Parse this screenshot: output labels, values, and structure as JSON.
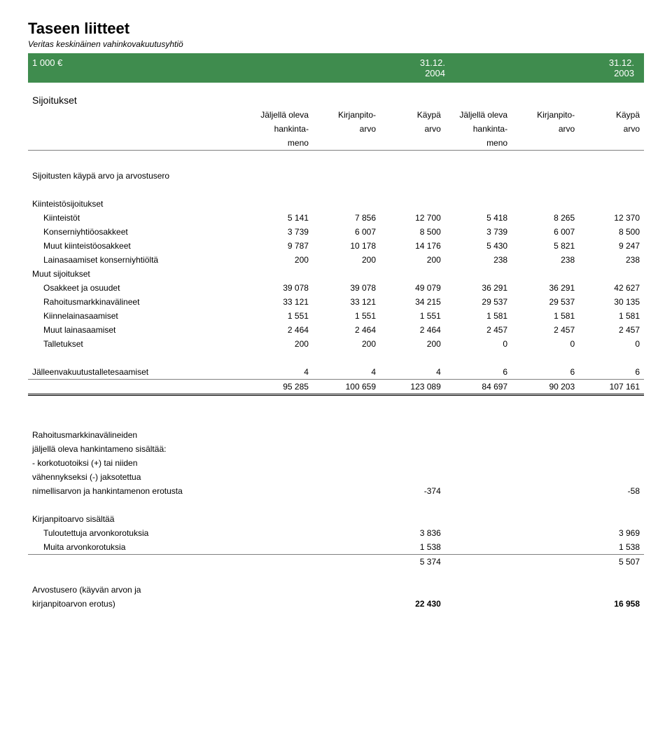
{
  "colors": {
    "green_bar_bg": "#3f8c4e",
    "green_bar_text": "#ffffff",
    "rule": "#808080",
    "text": "#000000",
    "background": "#ffffff"
  },
  "typography": {
    "title_fontsize": 22,
    "subtitle_fontsize": 12,
    "body_fontsize": 12,
    "section_heading_fontsize": 14
  },
  "header": {
    "title": "Taseen liitteet",
    "subtitle": "Veritas keskinäinen vahinkovakuutusyhtiö"
  },
  "green_bar": {
    "currency_label": "1 000 €",
    "date1": "31.12.",
    "year1": "2004",
    "date2": "31.12.",
    "year2": "2003"
  },
  "section_sijoitukset": "Sijoitukset",
  "col_headers": {
    "jaljella": "Jäljellä oleva",
    "hankinta": "hankinta-",
    "meno": "meno",
    "kirjanpito": "Kirjanpito-",
    "arvo": "arvo",
    "kaypa": "Käypä"
  },
  "labels": {
    "sijoitusten": "Sijoitusten käypä arvo ja arvostusero",
    "kiinteistosijoitukset": "Kiinteistösijoitukset",
    "kiinteistot": "Kiinteistöt",
    "konserniyhtio": "Konserniyhtiöosakkeet",
    "muutkiinteisto": "Muut kiinteistöosakkeet",
    "lainasaamiset_konserni": "Lainasaamiset konserniyhtiöltä",
    "muut_sijoitukset": "Muut sijoitukset",
    "osakkeet": "Osakkeet ja osuudet",
    "rahoitusmarkkina": "Rahoitusmarkkinavälineet",
    "kiinnelaina": "Kiinnelainasaamiset",
    "muut_laina": "Muut lainasaamiset",
    "talletukset": "Talletukset",
    "jalleenvakuutus": "Jälleenvakuutustalletesaamiset",
    "rahoitus_heading": "Rahoitusmarkkinavälineiden",
    "jaljella_hankinta": "jäljellä oleva hankintameno sisältää:",
    "korkotuotoiksi": "- korkotuotoiksi (+) tai niiden",
    "vahennykseksi": "  vähennykseksi (-) jaksotettua",
    "nimellisarvon": "nimellisarvon ja hankintamenon erotusta",
    "kirjanpitoarvo_sisaltaa": "Kirjanpitoarvo sisältää",
    "tuloutettuja": "Tuloutettuja arvonkorotuksia",
    "muita_arvon": "Muita arvonkorotuksia",
    "arvostusero_heading": "Arvostusero (käyvän arvon ja",
    "kirjanpitoarvon_erotus": "kirjanpitoarvon erotus)"
  },
  "rows": {
    "kiinteistot": [
      "5 141",
      "7 856",
      "12 700",
      "5 418",
      "8 265",
      "12 370"
    ],
    "konserniyhtio": [
      "3 739",
      "6 007",
      "8 500",
      "3 739",
      "6 007",
      "8 500"
    ],
    "muutkiinteisto": [
      "9 787",
      "10 178",
      "14 176",
      "5 430",
      "5 821",
      "9 247"
    ],
    "lainasaamiset": [
      "200",
      "200",
      "200",
      "238",
      "238",
      "238"
    ],
    "osakkeet": [
      "39 078",
      "39 078",
      "49 079",
      "36 291",
      "36 291",
      "42 627"
    ],
    "rahoitusmarkkina": [
      "33 121",
      "33 121",
      "34 215",
      "29 537",
      "29 537",
      "30 135"
    ],
    "kiinnelaina": [
      "1 551",
      "1 551",
      "1 551",
      "1 581",
      "1 581",
      "1 581"
    ],
    "muut_laina": [
      "2 464",
      "2 464",
      "2 464",
      "2 457",
      "2 457",
      "2 457"
    ],
    "talletukset": [
      "200",
      "200",
      "200",
      "0",
      "0",
      "0"
    ],
    "jalleenvakuutus": [
      "4",
      "4",
      "4",
      "6",
      "6",
      "6"
    ],
    "totals": [
      "95 285",
      "100 659",
      "123 089",
      "84 697",
      "90 203",
      "107 161"
    ]
  },
  "lower": {
    "nimellisarvon_vals": {
      "c3": "-374",
      "c6": "-58"
    },
    "tuloutettuja": {
      "c3": "3 836",
      "c6": "3 969"
    },
    "muita": {
      "c3": "1 538",
      "c6": "1 538"
    },
    "subtotal": {
      "c3": "5 374",
      "c6": "5 507"
    },
    "arvostusero": {
      "c3": "22 430",
      "c6": "16 958"
    }
  }
}
